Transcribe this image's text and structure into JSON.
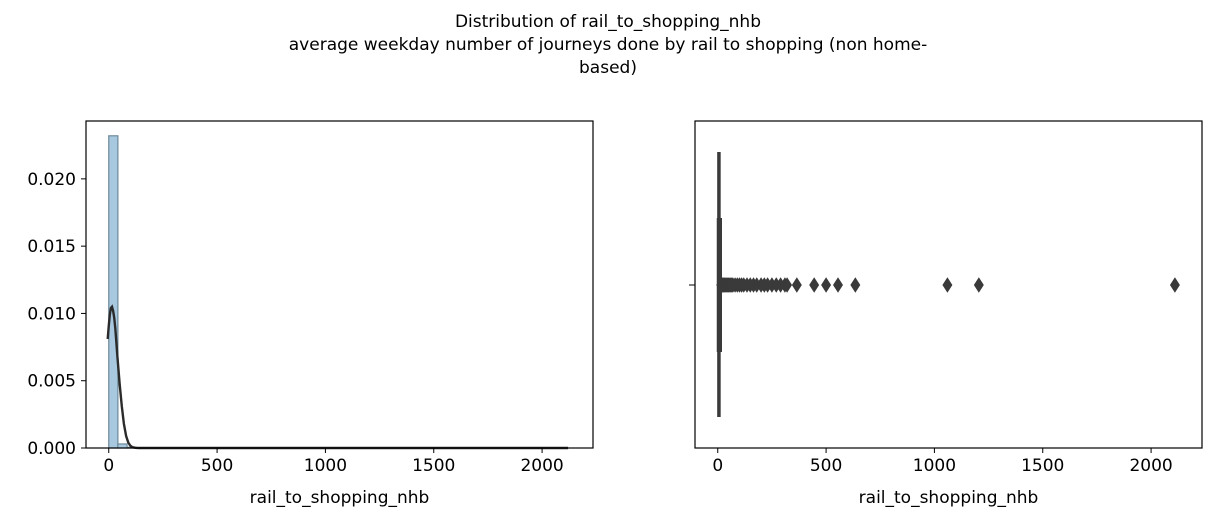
{
  "figure": {
    "title_lines": [
      "Distribution of rail_to_shopping_nhb",
      "average weekday number of journeys done by rail to shopping (non home-",
      "based)"
    ]
  },
  "chart_data": [
    {
      "type": "bar",
      "subtype": "histogram-with-kde",
      "xlabel": "rail_to_shopping_nhb",
      "ylabel": "",
      "xlim": [
        -105,
        2235
      ],
      "ylim": [
        0,
        0.0243
      ],
      "xticks": [
        0,
        500,
        1000,
        1500,
        2000
      ],
      "xtick_labels": [
        "0",
        "500",
        "1000",
        "1500",
        "2000"
      ],
      "yticks": [
        0.0,
        0.005,
        0.01,
        0.015,
        0.02
      ],
      "ytick_labels": [
        "0.000",
        "0.005",
        "0.010",
        "0.015",
        "0.020"
      ],
      "bin_width": 42.2,
      "bins": [
        {
          "x0": 0.0,
          "value": 0.0232
        },
        {
          "x0": 42.2,
          "value": 0.0003
        },
        {
          "x0": 84.4,
          "value": 5e-05
        },
        {
          "x0": 126.6,
          "value": 2e-05
        }
      ],
      "bar_color": "#a8c8df",
      "bar_edge": "#6e8a99",
      "kde": {
        "x": [
          -5,
          0,
          5,
          10,
          15,
          20,
          25,
          30,
          35,
          40,
          50,
          60,
          70,
          80,
          90,
          100,
          110,
          120,
          130,
          140,
          160,
          200,
          300,
          500,
          1000,
          1500,
          2000,
          2120
        ],
        "y": [
          0.0081,
          0.0091,
          0.0099,
          0.0104,
          0.0105,
          0.0102,
          0.0097,
          0.0089,
          0.0079,
          0.0068,
          0.0048,
          0.0031,
          0.0018,
          0.0009,
          0.0004,
          0.00016,
          6e-05,
          2e-05,
          1e-05,
          0.0,
          0.0,
          0.0,
          0.0,
          0.0,
          0.0,
          0.0,
          0.0,
          0.0
        ],
        "color": "#2b2b2b"
      },
      "grid": false,
      "legend": "none"
    },
    {
      "type": "scatter",
      "subtype": "boxplot-horizontal",
      "xlabel": "rail_to_shopping_nhb",
      "ylabel": "",
      "xlim": [
        -105,
        2235
      ],
      "xticks": [
        0,
        500,
        1000,
        1500,
        2000
      ],
      "xtick_labels": [
        "0",
        "500",
        "1000",
        "1500",
        "2000"
      ],
      "box": {
        "q1": 2,
        "median": 4,
        "q3": 7,
        "whisker_low": 0,
        "whisker_high": 15
      },
      "outliers": [
        16,
        20,
        24,
        28,
        32,
        36,
        40,
        45,
        50,
        55,
        60,
        65,
        70,
        80,
        90,
        100,
        110,
        120,
        135,
        150,
        165,
        180,
        200,
        215,
        230,
        250,
        270,
        290,
        310,
        320,
        365,
        445,
        500,
        555,
        635,
        1060,
        1205,
        2110
      ],
      "color": "#3a3a3a",
      "grid": false,
      "legend": "none"
    }
  ]
}
